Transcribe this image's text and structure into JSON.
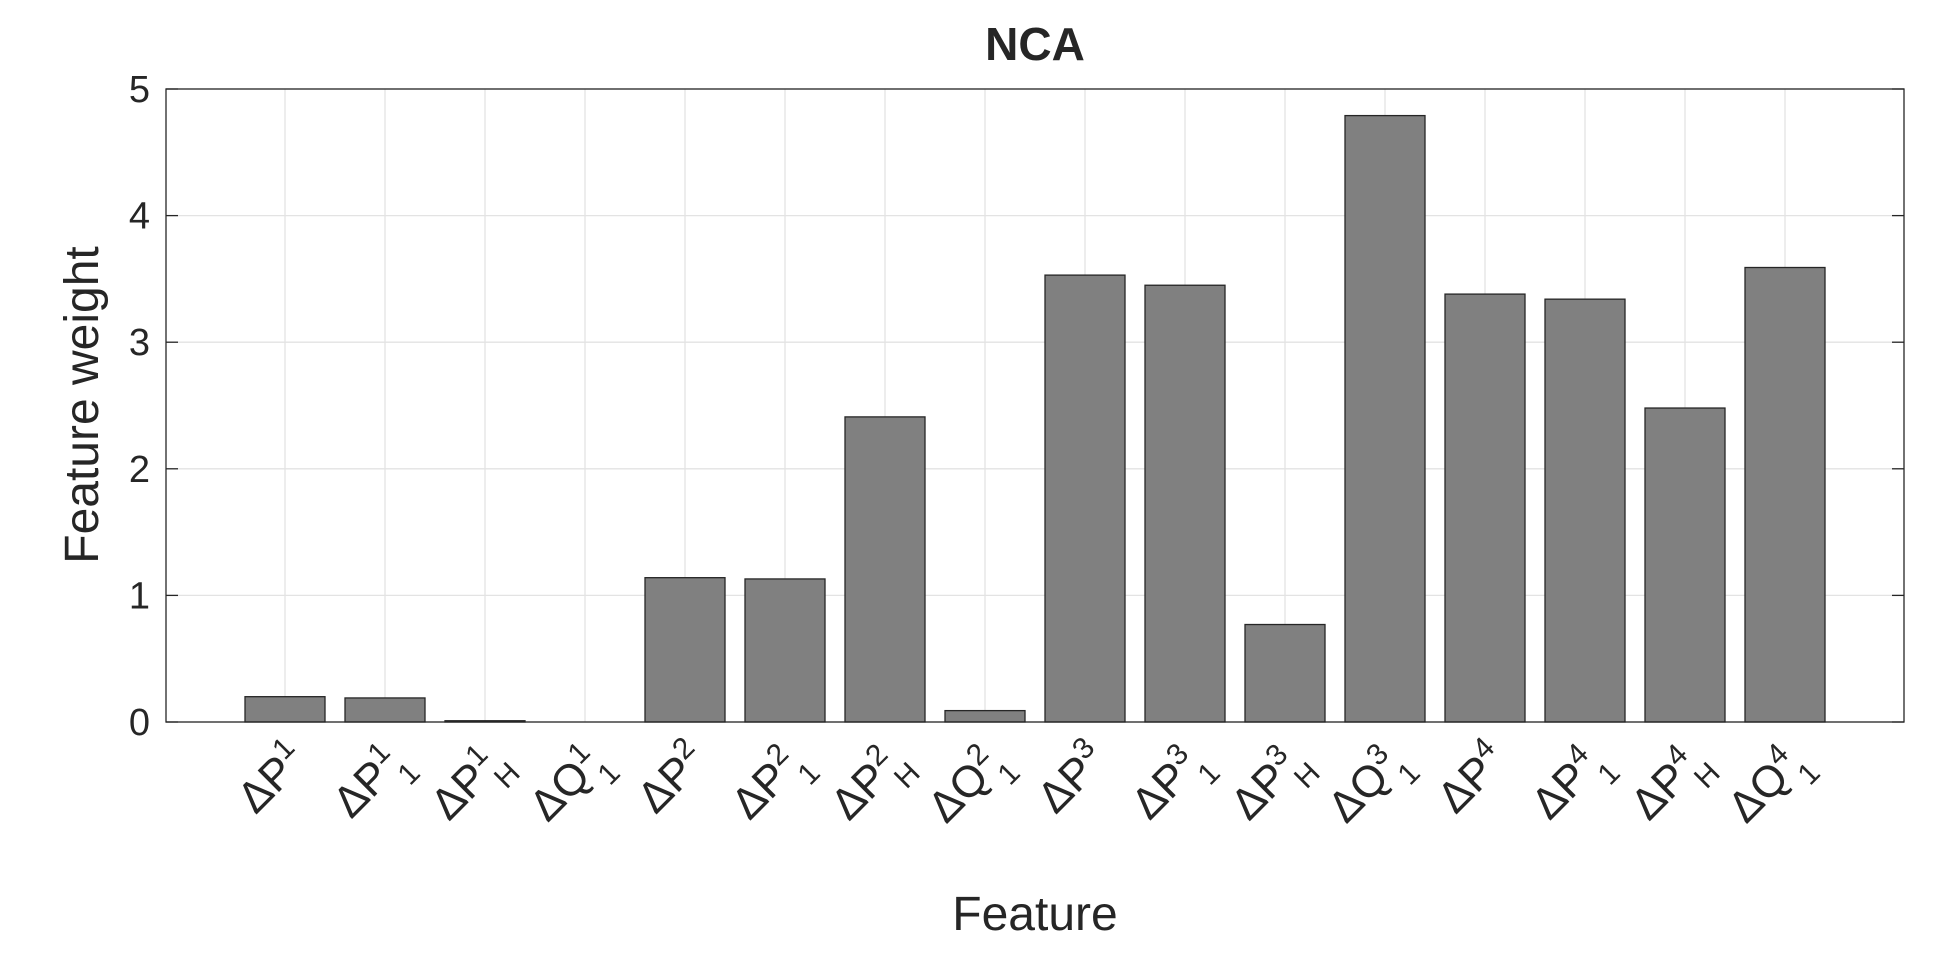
{
  "chart_data": {
    "type": "bar",
    "title": "NCA",
    "xlabel": "Feature",
    "ylabel": "Feature weight",
    "categories": [
      {
        "base": "ΔP",
        "sup": "1"
      },
      {
        "base": "ΔP",
        "sup": "1",
        "sub": "1"
      },
      {
        "base": "ΔP",
        "sup": "1",
        "sub": "H"
      },
      {
        "base": "ΔQ",
        "sup": "1",
        "sub": "1"
      },
      {
        "base": "ΔP",
        "sup": "2"
      },
      {
        "base": "ΔP",
        "sup": "2",
        "sub": "1"
      },
      {
        "base": "ΔP",
        "sup": "2",
        "sub": "H"
      },
      {
        "base": "ΔQ",
        "sup": "2",
        "sub": "1"
      },
      {
        "base": "ΔP",
        "sup": "3"
      },
      {
        "base": "ΔP",
        "sup": "3",
        "sub": "1"
      },
      {
        "base": "ΔP",
        "sup": "3",
        "sub": "H"
      },
      {
        "base": "ΔQ",
        "sup": "3",
        "sub": "1"
      },
      {
        "base": "ΔP",
        "sup": "4"
      },
      {
        "base": "ΔP",
        "sup": "4",
        "sub": "1"
      },
      {
        "base": "ΔP",
        "sup": "4",
        "sub": "H"
      },
      {
        "base": "ΔQ",
        "sup": "4",
        "sub": "1"
      }
    ],
    "values": [
      0.2,
      0.19,
      0.01,
      0,
      1.14,
      1.13,
      2.41,
      0.09,
      3.53,
      3.45,
      0.77,
      4.79,
      3.38,
      3.34,
      2.48,
      3.59
    ],
    "color": "#808080",
    "ylim": [
      0,
      5
    ],
    "yticks": [
      0,
      1,
      2,
      3,
      4,
      5
    ],
    "grid": true
  }
}
